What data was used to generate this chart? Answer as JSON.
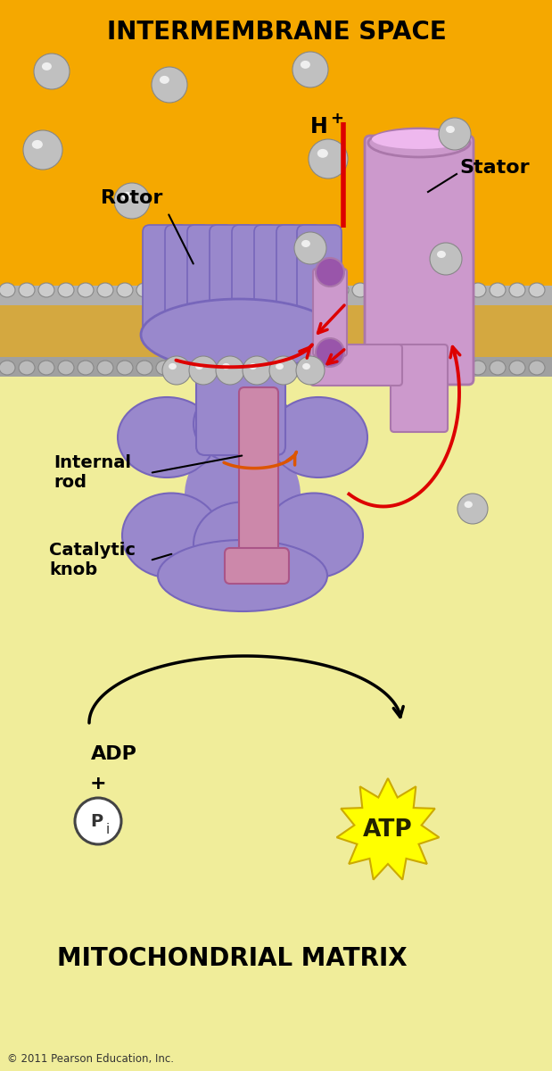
{
  "bg_orange": "#F5A800",
  "bg_yellow": "#F0ED9A",
  "rotor_color": "#9988CC",
  "rotor_dark": "#7766BB",
  "rotor_light": "#BBAAEE",
  "stator_color": "#CC99CC",
  "stator_dark": "#AA77AA",
  "stator_light": "#EEB8EE",
  "internal_rod_color": "#CC88AA",
  "internal_rod_dark": "#AA5588",
  "sphere_gray": "#C8C8C8",
  "membrane_gray": "#AAAAAA",
  "membrane_gold": "#D4A840",
  "arrow_red": "#DD0000",
  "arrow_orange_red": "#CC4400",
  "title_top": "INTERMEMBRANE SPACE",
  "title_bottom": "MITOCHONDRIAL MATRIX",
  "copyright": "© 2011 Pearson Education, Inc.",
  "label_rotor": "Rotor",
  "label_stator": "Stator",
  "label_hplus": "H+",
  "label_internal_rod": "Internal\nrod",
  "label_catalytic_knob": "Catalytic\nknob",
  "label_adp": "ADP",
  "label_plus": "+",
  "label_atp": "ATP"
}
